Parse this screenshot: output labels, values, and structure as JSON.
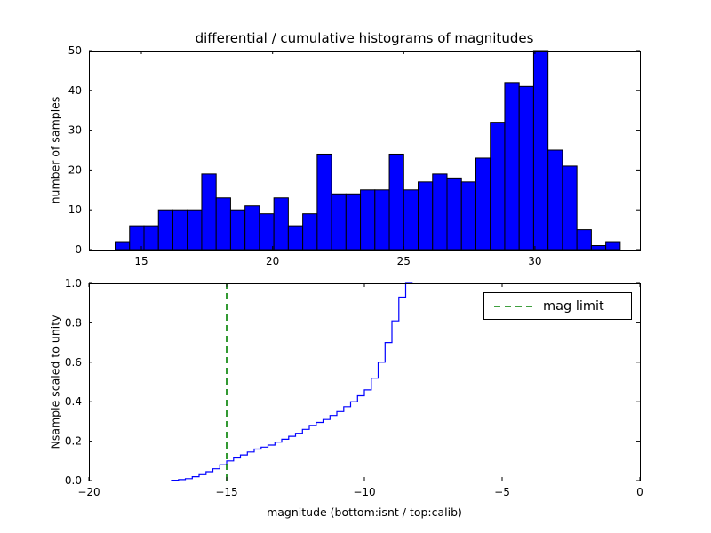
{
  "figure": {
    "background": "#ffffff",
    "title": "differential / cumulative histograms of magnitudes"
  },
  "chart_data": [
    {
      "type": "bar",
      "title": "differential / cumulative histograms of magnitudes",
      "ylabel": "number of samples",
      "xlim": [
        13,
        34
      ],
      "ylim": [
        0,
        50
      ],
      "xtick_values": [
        15,
        20,
        25,
        30
      ],
      "xtick_labels": [
        "15",
        "20",
        "25",
        "30"
      ],
      "ytick_values": [
        0,
        10,
        20,
        30,
        40,
        50
      ],
      "ytick_labels": [
        "0",
        "10",
        "20",
        "30",
        "40",
        "50"
      ],
      "grid": false,
      "bar_color": "#0000ff",
      "bar_edge_color": "#000000",
      "bins": {
        "start": 14.0,
        "width": 0.55
      },
      "values": [
        2,
        6,
        6,
        10,
        10,
        10,
        19,
        13,
        10,
        11,
        9,
        13,
        6,
        9,
        24,
        14,
        14,
        15,
        15,
        24,
        15,
        17,
        19,
        18,
        17,
        23,
        32,
        42,
        41,
        50,
        25,
        21,
        5,
        1,
        2
      ]
    },
    {
      "type": "line",
      "style": "cumulative-step",
      "ylabel": "Nsample scaled to unity",
      "xlabel": "magnitude (bottom:isnt / top:calib)",
      "xlim": [
        -20,
        0
      ],
      "ylim": [
        0,
        1.0
      ],
      "xtick_values": [
        -20,
        -15,
        -10,
        -5,
        0
      ],
      "xtick_labels": [
        "−20",
        "−15",
        "−10",
        "−5",
        "0"
      ],
      "ytick_values": [
        0.0,
        0.2,
        0.4,
        0.6,
        0.8,
        1.0
      ],
      "ytick_labels": [
        "0.0",
        "0.2",
        "0.4",
        "0.6",
        "0.8",
        "1.0"
      ],
      "grid": false,
      "line_color": "#0000ff",
      "step": {
        "start": -17.0,
        "width": 0.25,
        "cumulative": [
          0.002,
          0.005,
          0.01,
          0.02,
          0.03,
          0.045,
          0.06,
          0.08,
          0.1,
          0.115,
          0.13,
          0.145,
          0.16,
          0.17,
          0.18,
          0.195,
          0.21,
          0.225,
          0.24,
          0.26,
          0.28,
          0.295,
          0.31,
          0.33,
          0.35,
          0.375,
          0.4,
          0.43,
          0.46,
          0.52,
          0.6,
          0.7,
          0.81,
          0.93,
          1.0
        ]
      },
      "mag_limit": {
        "x": -15,
        "label": "mag limit",
        "color": "#008000",
        "dashed": true
      },
      "legend_position": "upper right"
    }
  ]
}
